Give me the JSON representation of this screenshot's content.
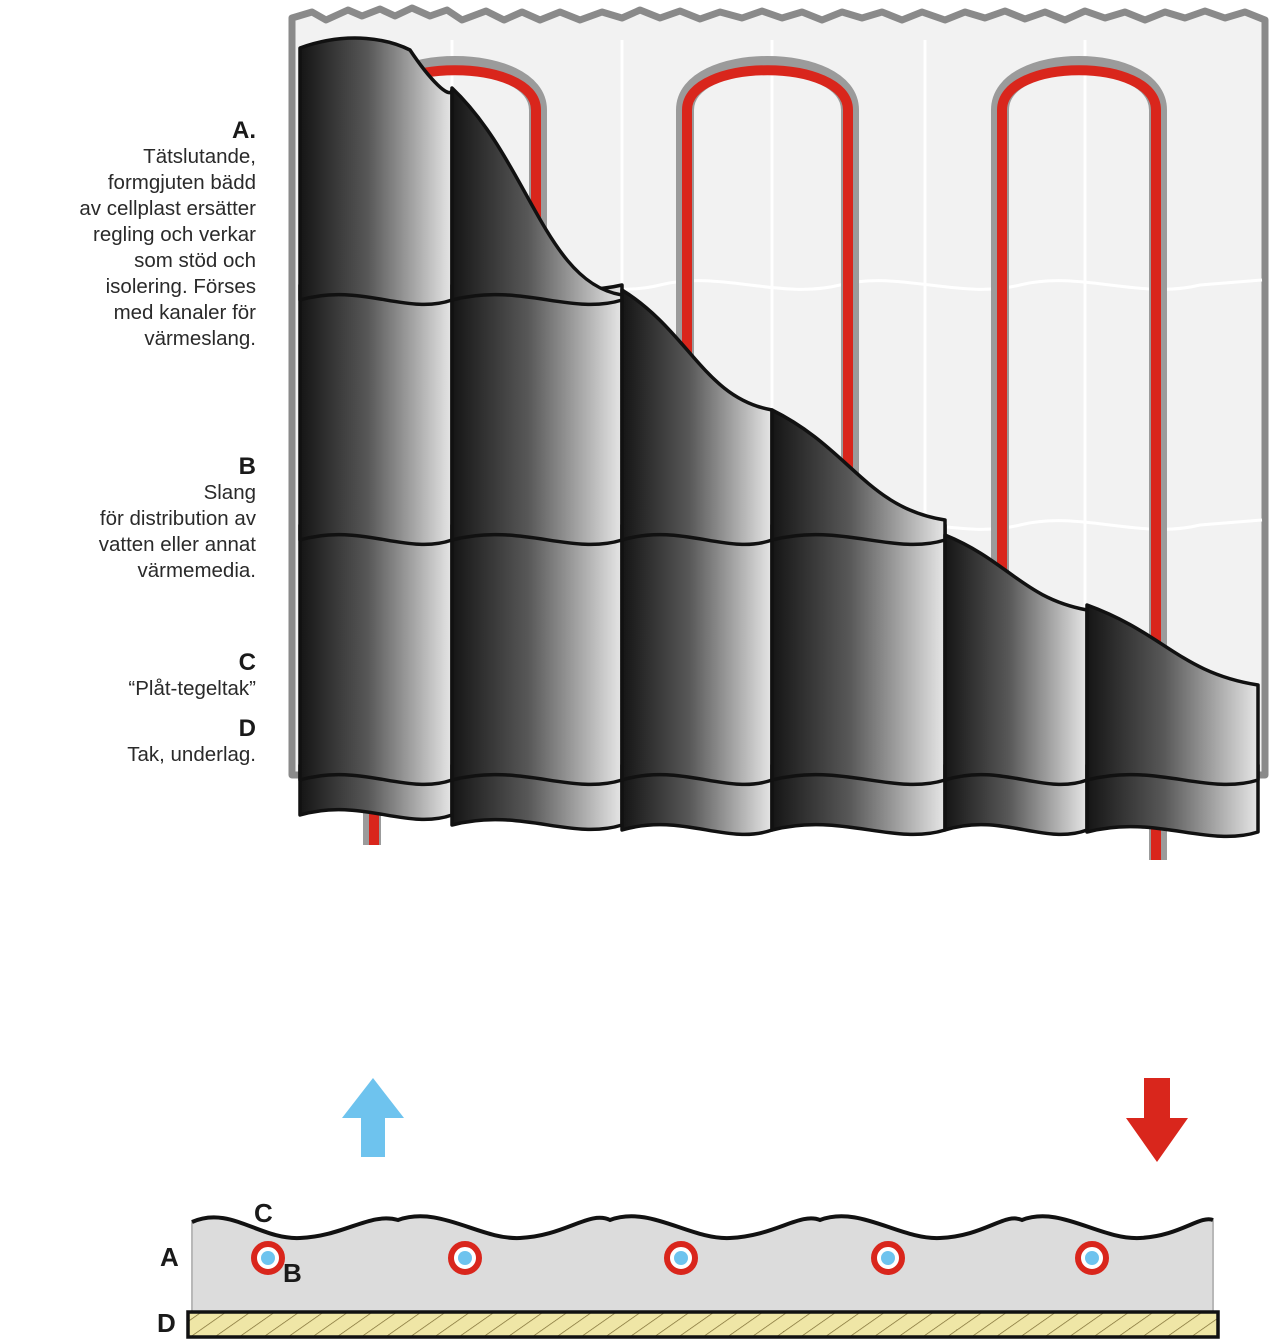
{
  "legend": {
    "A": {
      "title": "A.",
      "text": "Tätslutande,\nformgjuten bädd\nav cellplast ersätter\nregling och verkar\nsom stöd och\nisolering. Förses\nmed kanaler för\nvärmeslang."
    },
    "B": {
      "title": "B",
      "text": "Slang\nför distribution av\nvatten eller annat\nvärmemedia."
    },
    "C": {
      "title": "C",
      "text": "“Plåt-tegeltak”"
    },
    "D": {
      "title": "D",
      "text": "Tak, underlag."
    }
  },
  "section": {
    "label_a": "A",
    "label_b": "B",
    "label_c": "C",
    "label_d": "D"
  },
  "colors": {
    "hose": "#d9261c",
    "inlet_arrow": "#6ec3ee",
    "outlet_arrow": "#d9261c",
    "insulation": "#dcdcdc",
    "roof_base": "#efe6a6"
  }
}
